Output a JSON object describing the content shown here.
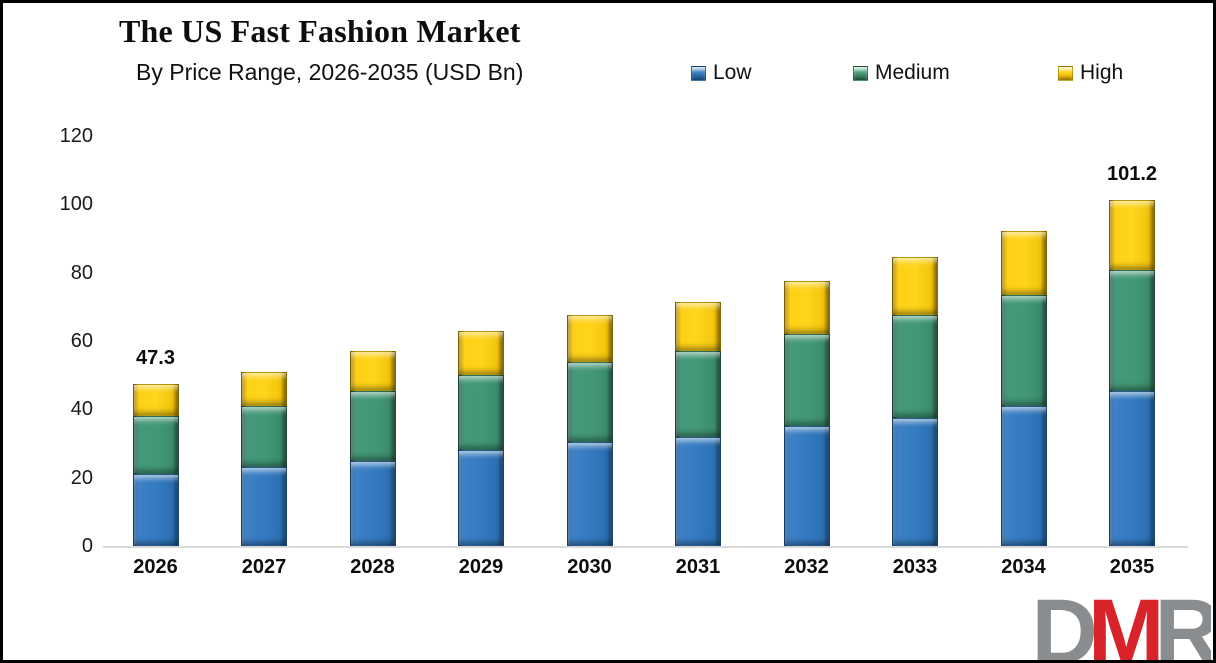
{
  "header": {
    "title": "The US Fast Fashion Market",
    "subtitle": "By Price Range, 2026-2035 (USD Bn)"
  },
  "legend": {
    "items": [
      {
        "label": "Low",
        "color": "#2E75B6"
      },
      {
        "label": "Medium",
        "color": "#41926F"
      },
      {
        "label": "High",
        "color": "#FFC908"
      }
    ]
  },
  "logo": {
    "letters": [
      {
        "char": "D",
        "color": "#8A8D90"
      },
      {
        "char": "M",
        "color": "#D8232A"
      },
      {
        "char": "R",
        "color": "#8A8D90"
      }
    ]
  },
  "chart_data": {
    "type": "bar",
    "stacked": true,
    "title": "The US Fast Fashion Market",
    "subtitle": "By Price Range, 2026-2035 (USD Bn)",
    "unit": "USD Bn",
    "categories": [
      "2026",
      "2027",
      "2028",
      "2029",
      "2030",
      "2031",
      "2032",
      "2033",
      "2034",
      "2035"
    ],
    "series": [
      {
        "name": "Low",
        "color": "#2E75B6",
        "values": [
          21.0,
          23.0,
          25.0,
          28.0,
          30.5,
          32.0,
          35.0,
          37.5,
          41.0,
          45.5
        ]
      },
      {
        "name": "Medium",
        "color": "#41926F",
        "values": [
          17.0,
          18.0,
          20.5,
          22.0,
          23.5,
          25.0,
          27.0,
          30.0,
          32.5,
          35.3
        ]
      },
      {
        "name": "High",
        "color": "#FFC908",
        "values": [
          9.3,
          10.0,
          11.5,
          13.0,
          13.5,
          14.5,
          15.7,
          17.0,
          18.7,
          20.4
        ]
      }
    ],
    "totals": [
      47.3,
      51.0,
      57.0,
      63.0,
      67.5,
      71.5,
      77.7,
      84.5,
      92.2,
      101.2
    ],
    "total_labels": [
      "47.3",
      "",
      "",
      "",
      "",
      "",
      "",
      "",
      "",
      "101.2"
    ],
    "xlabel": "",
    "ylabel": "",
    "ylim": [
      0,
      120
    ],
    "yticks": [
      0,
      20,
      40,
      60,
      80,
      100,
      120
    ],
    "grid": false,
    "legend_position": "top"
  }
}
